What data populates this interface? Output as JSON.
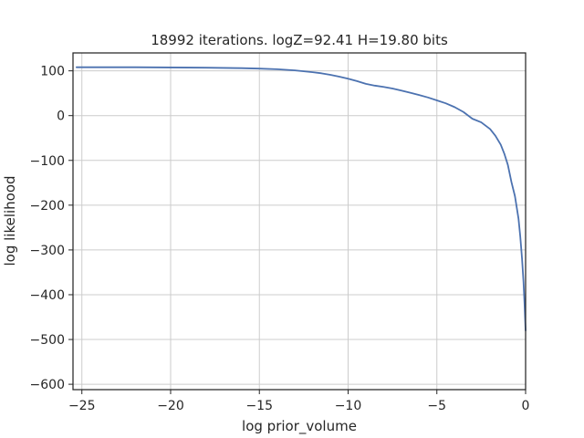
{
  "chart_data": {
    "type": "line",
    "title": "18992 iterations. logZ=92.41 H=19.80 bits",
    "xlabel": "log prior_volume",
    "ylabel": "log likelihood",
    "xlim": [
      -25.5,
      0
    ],
    "ylim": [
      -612,
      140
    ],
    "xticks": [
      -25,
      -20,
      -15,
      -10,
      -5,
      0
    ],
    "xtick_labels": [
      "−25",
      "−20",
      "−15",
      "−10",
      "−5",
      "0"
    ],
    "yticks": [
      100,
      0,
      -100,
      -200,
      -300,
      -400,
      -500,
      -600
    ],
    "ytick_labels": [
      "100",
      "0",
      "−100",
      "−200",
      "−300",
      "−400",
      "−500",
      "−600"
    ],
    "grid": true,
    "legend": "none",
    "series_color": "#4c72b0",
    "series": [
      {
        "x": [
          -25.3,
          -22,
          -20,
          -18,
          -16,
          -15,
          -14,
          -13,
          -12.5,
          -12,
          -11.5,
          -11,
          -10.5,
          -10,
          -9.5,
          -9,
          -8.5,
          -8,
          -7.5,
          -7,
          -6.5,
          -6,
          -5.5,
          -5,
          -4.5,
          -4,
          -3.5,
          -3,
          -2.5,
          -2,
          -1.7,
          -1.4,
          -1.2,
          -1.0,
          -0.8,
          -0.6,
          -0.5,
          -0.4,
          -0.3,
          -0.2,
          -0.12,
          -0.06,
          0
        ],
        "y": [
          108,
          108,
          107.5,
          107,
          106,
          105,
          103.5,
          101,
          99,
          97,
          94.5,
          91,
          87,
          82.5,
          77,
          71,
          67,
          64,
          60.5,
          56,
          51,
          46,
          40.5,
          34,
          27.5,
          19,
          8,
          -7,
          -15,
          -30,
          -45,
          -65,
          -85,
          -110,
          -148,
          -180,
          -205,
          -230,
          -270,
          -320,
          -370,
          -420,
          -480
        ]
      }
    ]
  }
}
